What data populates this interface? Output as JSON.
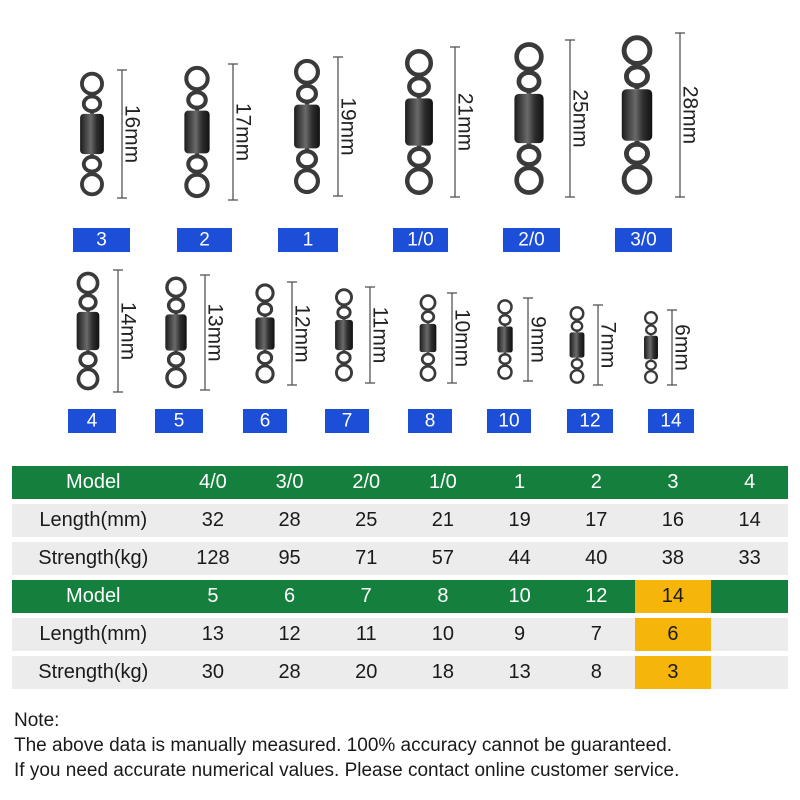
{
  "colors": {
    "model_row": "#15803d",
    "data_row": "#ececec",
    "highlight": "#f5b50b",
    "size_badge": "#1d4ed8",
    "swivel_metal": "#3a3a3a"
  },
  "swivels_row1": [
    {
      "size": "3",
      "length": "16mm"
    },
    {
      "size": "2",
      "length": "17mm"
    },
    {
      "size": "1",
      "length": "19mm"
    },
    {
      "size": "1/0",
      "length": "21mm"
    },
    {
      "size": "2/0",
      "length": "25mm"
    },
    {
      "size": "3/0",
      "length": "28mm"
    }
  ],
  "swivels_row2": [
    {
      "size": "4",
      "length": "14mm"
    },
    {
      "size": "5",
      "length": "13mm"
    },
    {
      "size": "6",
      "length": "12mm"
    },
    {
      "size": "7",
      "length": "11mm"
    },
    {
      "size": "8",
      "length": "10mm"
    },
    {
      "size": "10",
      "length": "9mm"
    },
    {
      "size": "12",
      "length": "7mm"
    },
    {
      "size": "14",
      "length": "6mm"
    }
  ],
  "table": {
    "part1": {
      "model_label": "Model",
      "length_label": "Length(mm)",
      "strength_label": "Strength(kg)",
      "models": [
        "4/0",
        "3/0",
        "2/0",
        "1/0",
        "1",
        "2",
        "3",
        "4"
      ],
      "lengths": [
        "32",
        "28",
        "25",
        "21",
        "19",
        "17",
        "16",
        "14"
      ],
      "strengths": [
        "128",
        "95",
        "71",
        "57",
        "44",
        "40",
        "38",
        "33"
      ]
    },
    "part2": {
      "model_label": "Model",
      "length_label": "Length(mm)",
      "strength_label": "Strength(kg)",
      "models": [
        "5",
        "6",
        "7",
        "8",
        "10",
        "12",
        "14",
        ""
      ],
      "lengths": [
        "13",
        "12",
        "11",
        "10",
        "9",
        "7",
        "6",
        ""
      ],
      "strengths": [
        "30",
        "28",
        "20",
        "18",
        "13",
        "8",
        "3",
        ""
      ],
      "highlight_column": 6
    }
  },
  "note": {
    "title": "Note:",
    "line1": "The above data is manually measured. 100% accuracy cannot be guaranteed.",
    "line2": "If you need accurate numerical values. Please contact online customer service."
  }
}
